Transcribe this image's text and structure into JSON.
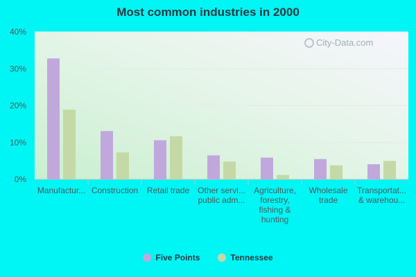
{
  "chart_data": {
    "type": "bar",
    "title": "Most common industries in 2000",
    "categories": [
      [
        "Manufactur..."
      ],
      [
        "Construction"
      ],
      [
        "Retail trade"
      ],
      [
        "Other servi...",
        "public adm..."
      ],
      [
        "Agriculture,",
        "forestry,",
        "fishing &",
        "hunting"
      ],
      [
        "Wholesale",
        "trade"
      ],
      [
        "Transportat...",
        "& warehou..."
      ]
    ],
    "series": [
      {
        "name": "Five Points",
        "color": "#c1a8dc",
        "values": [
          32.8,
          13.1,
          10.6,
          6.5,
          5.9,
          5.5,
          4.1
        ]
      },
      {
        "name": "Tennessee",
        "color": "#c5d9a6",
        "values": [
          18.9,
          7.3,
          11.7,
          4.8,
          1.2,
          3.8,
          5.0
        ]
      }
    ],
    "ylim": [
      0,
      40
    ],
    "yticks": [
      "0%",
      "10%",
      "20%",
      "30%",
      "40%"
    ],
    "grid": true,
    "legend_position": "bottom",
    "watermark": "City-Data.com"
  }
}
